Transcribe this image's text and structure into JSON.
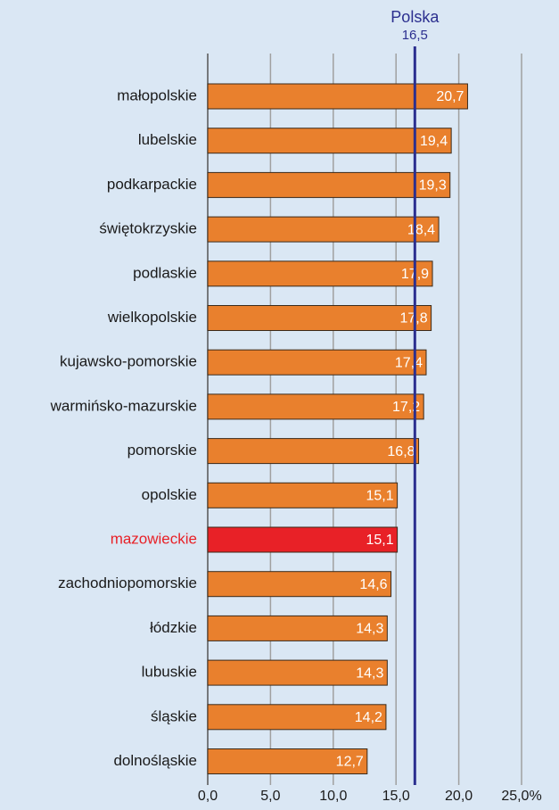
{
  "chart_data": {
    "type": "hbar",
    "categories": [
      "małopolskie",
      "lubelskie",
      "podkarpackie",
      "świętokrzyskie",
      "podlaskie",
      "wielkopolskie",
      "kujawsko-pomorskie",
      "warmińsko-mazurskie",
      "pomorskie",
      "opolskie",
      "mazowieckie",
      "zachodniopomorskie",
      "łódzkie",
      "lubuskie",
      "śląskie",
      "dolnośląskie"
    ],
    "values": [
      20.7,
      19.4,
      19.3,
      18.4,
      17.9,
      17.8,
      17.4,
      17.2,
      16.8,
      15.1,
      15.1,
      14.6,
      14.3,
      14.3,
      14.2,
      12.7
    ],
    "value_labels": [
      "20,7",
      "19,4",
      "19,3",
      "18,4",
      "17,9",
      "17,8",
      "17,4",
      "17,2",
      "16,8",
      "15,1",
      "15,1",
      "14,6",
      "14,3",
      "14,3",
      "14,2",
      "12,7"
    ],
    "colors": [
      "#e9802d",
      "#e9802d",
      "#e9802d",
      "#e9802d",
      "#e9802d",
      "#e9802d",
      "#e9802d",
      "#e9802d",
      "#e9802d",
      "#e9802d",
      "#e82127",
      "#e9802d",
      "#e9802d",
      "#e9802d",
      "#e9802d",
      "#e9802d"
    ],
    "category_label_colors": [
      "#1a1a1a",
      "#1a1a1a",
      "#1a1a1a",
      "#1a1a1a",
      "#1a1a1a",
      "#1a1a1a",
      "#1a1a1a",
      "#1a1a1a",
      "#1a1a1a",
      "#1a1a1a",
      "#e82127",
      "#1a1a1a",
      "#1a1a1a",
      "#1a1a1a",
      "#1a1a1a",
      "#1a1a1a"
    ],
    "xlim": [
      0,
      25
    ],
    "xticks": [
      {
        "value": 0,
        "label": "0,0"
      },
      {
        "value": 5,
        "label": "5,0"
      },
      {
        "value": 10,
        "label": "10,0"
      },
      {
        "value": 15,
        "label": "15,0"
      },
      {
        "value": 20,
        "label": "20,0"
      },
      {
        "value": 25,
        "label": "25,0%"
      }
    ],
    "grid": true,
    "reference_line": {
      "name": "Polska",
      "value": 16.5,
      "label": "16,5",
      "color": "#2b2f8f"
    }
  }
}
